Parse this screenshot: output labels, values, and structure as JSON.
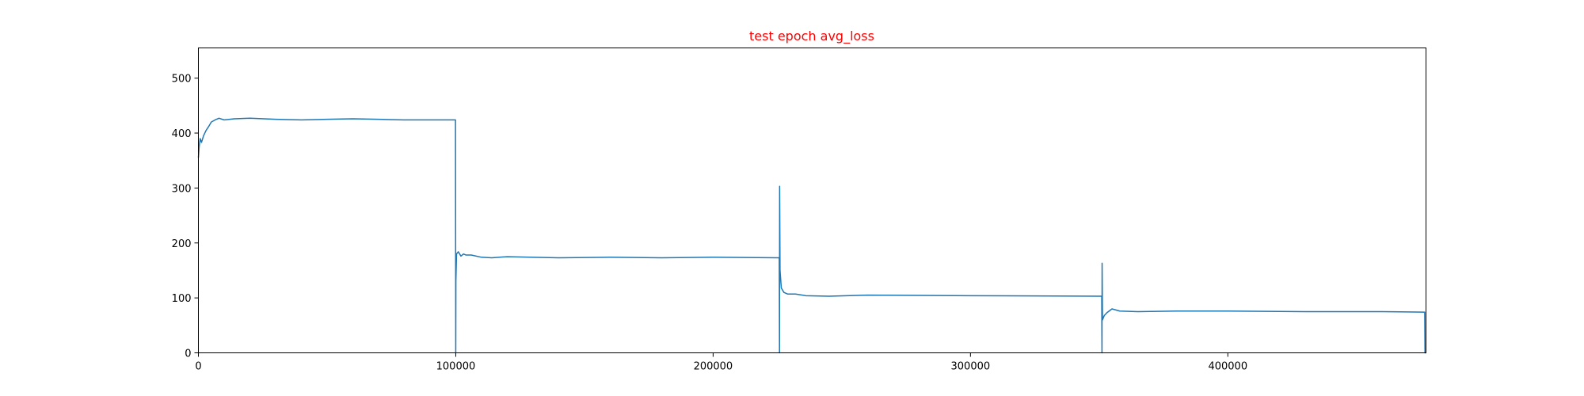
{
  "chart_data": {
    "type": "line",
    "title": "test epoch avg_loss",
    "title_color": "#ff0000",
    "xlabel": "",
    "ylabel": "",
    "xlim": [
      0,
      477000
    ],
    "ylim": [
      0,
      555
    ],
    "xticks": [
      0,
      100000,
      200000,
      300000,
      400000
    ],
    "xtick_labels": [
      "0",
      "100000",
      "200000",
      "300000",
      "400000"
    ],
    "yticks": [
      0,
      100,
      200,
      300,
      400,
      500
    ],
    "ytick_labels": [
      "0",
      "100",
      "200",
      "300",
      "400",
      "500"
    ],
    "grid": false,
    "legend": "none",
    "series": [
      {
        "color": "#1f77b4",
        "x": [
          0,
          300,
          700,
          1200,
          2000,
          3000,
          4000,
          5000,
          6500,
          8000,
          10000,
          14000,
          20000,
          30000,
          40000,
          50000,
          60000,
          70000,
          80000,
          90000,
          99900,
          100000,
          100050,
          100300,
          101000,
          102000,
          103000,
          104000,
          106000,
          110000,
          114000,
          120000,
          140000,
          160000,
          180000,
          200000,
          225700,
          225800,
          225850,
          226000,
          226500,
          227500,
          229000,
          232000,
          236000,
          245000,
          260000,
          300000,
          351000,
          351100,
          351150,
          351300,
          352000,
          353000,
          355000,
          358000,
          365000,
          380000,
          400000,
          430000,
          460000,
          476500,
          476600,
          477000
        ],
        "values": [
          355,
          375,
          390,
          383,
          395,
          405,
          412,
          420,
          424,
          427,
          424,
          426,
          427,
          425,
          424,
          425,
          426,
          425,
          424,
          424,
          424,
          0,
          130,
          180,
          184,
          176,
          180,
          178,
          178,
          174,
          173,
          175,
          173,
          174,
          173,
          174,
          173,
          0,
          303,
          150,
          118,
          110,
          107,
          107,
          104,
          103,
          105,
          104,
          103,
          0,
          163,
          60,
          68,
          73,
          80,
          76,
          75,
          76,
          76,
          75,
          75,
          74,
          0,
          0
        ]
      }
    ]
  }
}
